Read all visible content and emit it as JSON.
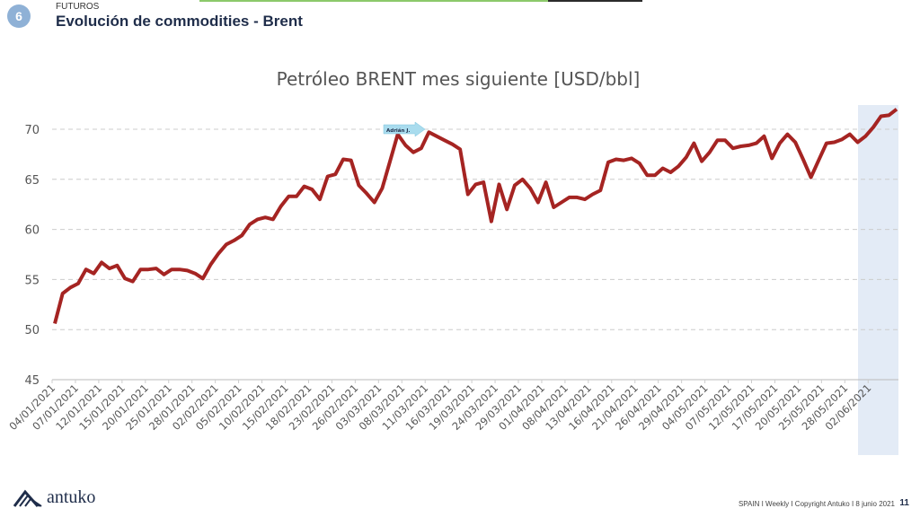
{
  "header": {
    "badge": "6",
    "section": "FUTUROS",
    "title": "Evolución de commodities - Brent"
  },
  "footer": {
    "text": "SPAIN I Weekly I Copyright Antuko I 8 junio 2021",
    "page": "11",
    "logo": "antuko"
  },
  "annotation": {
    "label": "Adrián J."
  },
  "colors": {
    "line": "#a52422",
    "highlight": "#e3ebf6",
    "grid": "#cccccc"
  },
  "chart_data": {
    "type": "line",
    "title": "Petróleo BRENT mes siguiente [USD/bbl]",
    "ylim": [
      45,
      72
    ],
    "yticks": [
      45,
      50,
      55,
      60,
      65,
      70
    ],
    "grid": true,
    "x_tick_labels": [
      "04/01/2021",
      "07/01/2021",
      "12/01/2021",
      "15/01/2021",
      "20/01/2021",
      "25/01/2021",
      "28/01/2021",
      "02/02/2021",
      "05/02/2021",
      "10/02/2021",
      "15/02/2021",
      "18/02/2021",
      "23/02/2021",
      "26/02/2021",
      "03/03/2021",
      "08/03/2021",
      "11/03/2021",
      "16/03/2021",
      "19/03/2021",
      "24/03/2021",
      "29/03/2021",
      "01/04/2021",
      "08/04/2021",
      "13/04/2021",
      "16/04/2021",
      "21/04/2021",
      "26/04/2021",
      "29/04/2021",
      "04/05/2021",
      "07/05/2021",
      "12/05/2021",
      "17/05/2021",
      "20/05/2021",
      "25/05/2021",
      "28/05/2021",
      "02/06/2021"
    ],
    "series": [
      {
        "values": [
          50.6,
          53.6,
          54.2,
          54.6,
          56.0,
          55.6,
          56.7,
          56.1,
          56.4,
          55.1,
          54.8,
          56.0,
          56.0,
          56.1,
          55.5,
          56.0,
          56.0,
          55.9,
          55.6,
          55.1,
          56.5,
          57.6,
          58.5,
          58.9,
          59.4,
          60.5,
          61.0,
          61.2,
          61.0,
          62.3,
          63.3,
          63.3,
          64.3,
          64.0,
          63.0,
          65.3,
          65.5,
          67.0,
          66.9,
          64.4,
          63.6,
          62.7,
          64.1,
          66.8,
          69.5,
          68.4,
          67.7,
          68.1,
          69.7,
          69.3,
          68.9,
          68.5,
          68.0,
          63.5,
          64.5,
          64.7,
          60.8,
          64.5,
          62.0,
          64.4,
          65.0,
          64.1,
          62.7,
          64.7,
          62.2,
          62.7,
          63.2,
          63.2,
          63.0,
          63.5,
          63.9,
          66.7,
          67.0,
          66.9,
          67.1,
          66.6,
          65.4,
          65.4,
          66.1,
          65.7,
          66.3,
          67.2,
          68.6,
          66.8,
          67.7,
          68.9,
          68.9,
          68.1,
          68.3,
          68.4,
          68.6,
          69.3,
          67.1,
          68.6,
          69.5,
          68.7,
          67.0,
          65.2,
          66.9,
          68.6,
          68.7,
          69.0,
          69.5,
          68.7,
          69.3,
          70.2,
          71.3,
          71.4,
          72.0
        ]
      }
    ]
  }
}
